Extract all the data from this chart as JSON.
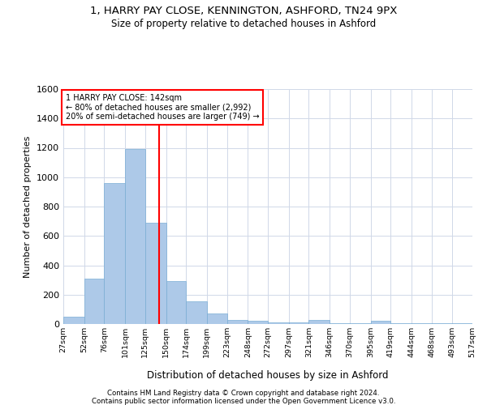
{
  "title": "1, HARRY PAY CLOSE, KENNINGTON, ASHFORD, TN24 9PX",
  "subtitle": "Size of property relative to detached houses in Ashford",
  "xlabel": "Distribution of detached houses by size in Ashford",
  "ylabel": "Number of detached properties",
  "bar_color": "#adc9e8",
  "bar_edge_color": "#7aadd4",
  "vline_x": 142,
  "vline_color": "red",
  "annotation_lines": [
    "1 HARRY PAY CLOSE: 142sqm",
    "← 80% of detached houses are smaller (2,992)",
    "20% of semi-detached houses are larger (749) →"
  ],
  "bin_edges": [
    27,
    52,
    76,
    101,
    125,
    150,
    174,
    199,
    223,
    248,
    272,
    297,
    321,
    346,
    370,
    395,
    419,
    444,
    468,
    493,
    517
  ],
  "bin_counts": [
    50,
    310,
    960,
    1190,
    690,
    295,
    155,
    70,
    30,
    20,
    10,
    10,
    25,
    5,
    5,
    20,
    5,
    5,
    5,
    5
  ],
  "ylim": [
    0,
    1600
  ],
  "yticks": [
    0,
    200,
    400,
    600,
    800,
    1000,
    1200,
    1400,
    1600
  ],
  "background_color": "#ffffff",
  "grid_color": "#d0d8e8",
  "footer_line1": "Contains HM Land Registry data © Crown copyright and database right 2024.",
  "footer_line2": "Contains public sector information licensed under the Open Government Licence v3.0."
}
